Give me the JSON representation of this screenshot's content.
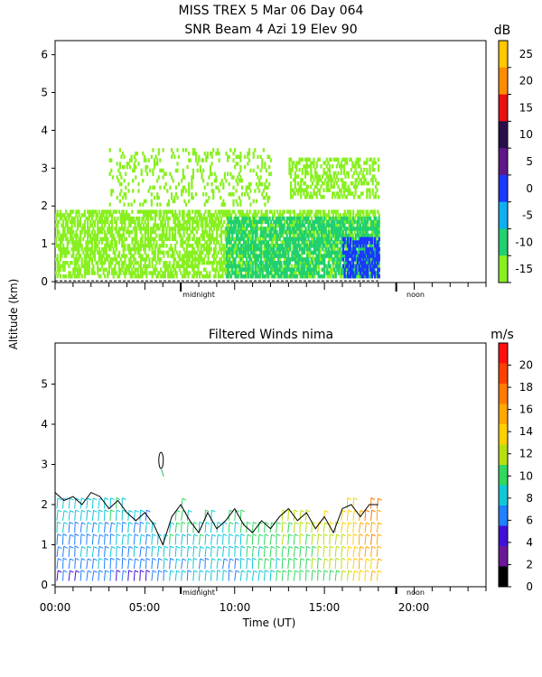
{
  "header": {
    "title_line1": "MISS TREX    5 Mar 06 Day 064",
    "title_line2": "SNR Beam 4 Azi   19 Elev 90"
  },
  "shared": {
    "ylabel": "Altitude (km)",
    "xlabel": "Time (UT)",
    "time_ticks": [
      "00:00",
      "05:00",
      "10:00",
      "15:00",
      "20:00"
    ],
    "day_markers": [
      "midnight",
      "noon"
    ]
  },
  "snr_panel": {
    "unit": "dB",
    "colorbar_ticks": [
      "25",
      "20",
      "15",
      "10",
      "5",
      "0",
      "-5",
      "-10",
      "-15"
    ],
    "colorbar_colors": [
      "#ffc800",
      "#ff8c00",
      "#e81010",
      "#2a0e4a",
      "#5e1888",
      "#1a38ff",
      "#10b0f0",
      "#22d070",
      "#88f020"
    ]
  },
  "wind_panel": {
    "title": "Filtered Winds nima",
    "unit": "m/s",
    "colorbar_ticks": [
      "20",
      "18",
      "16",
      "14",
      "12",
      "10",
      "8",
      "6",
      "4",
      "2",
      "0"
    ],
    "colorbar_colors": [
      "#ff1010",
      "#ff4000",
      "#ff7a00",
      "#ffa800",
      "#ffd000",
      "#b8e010",
      "#30d860",
      "#10c8d8",
      "#2080ff",
      "#4010d8",
      "#6a1898",
      "#000000"
    ]
  },
  "chart_data": [
    {
      "type": "heatmap",
      "title": "SNR Beam 4 Azi   19 Elev 90",
      "ylabel": "Altitude (km)",
      "ylim": [
        0,
        6.4
      ],
      "xlim": [
        0,
        24
      ],
      "yticks": [
        0,
        1,
        2,
        3,
        4,
        5,
        6
      ],
      "colorbar": {
        "label": "dB",
        "range": [
          -15,
          30
        ],
        "ticks": [
          25,
          20,
          15,
          10,
          5,
          0,
          -5,
          -10,
          -15
        ]
      },
      "data_time_range": [
        0,
        18
      ],
      "layers": [
        {
          "name": "dense-boundary-layer",
          "t": [
            0,
            18
          ],
          "alt": [
            0.1,
            1.9
          ],
          "snr_db": -12
        },
        {
          "name": "core",
          "t": [
            9.5,
            18
          ],
          "alt": [
            0.1,
            1.7
          ],
          "snr_db": -8
        },
        {
          "name": "strong-core",
          "t": [
            16,
            18
          ],
          "alt": [
            0.1,
            1.1
          ],
          "snr_db": 2
        },
        {
          "name": "elevated-layer",
          "t": [
            13,
            18
          ],
          "alt": [
            2.2,
            3.2
          ],
          "snr_db": -13
        },
        {
          "name": "sparse-echoes",
          "t": [
            3,
            12
          ],
          "alt": [
            2.0,
            3.5
          ],
          "snr_db": -14
        }
      ]
    },
    {
      "type": "scatter",
      "title": "Filtered Winds nima",
      "xlabel": "Time (UT)",
      "ylabel": "Altitude (km)",
      "xlim": [
        0,
        24
      ],
      "ylim": [
        0,
        6
      ],
      "xticks": [
        "00:00",
        "05:00",
        "10:00",
        "15:00",
        "20:00"
      ],
      "yticks": [
        0,
        1,
        2,
        3,
        4,
        5
      ],
      "colorbar": {
        "label": "m/s",
        "range": [
          0,
          22
        ],
        "ticks": [
          20,
          18,
          16,
          14,
          12,
          10,
          8,
          6,
          4,
          2,
          0
        ]
      },
      "barb_heights_km": [
        0.1,
        0.4,
        0.7,
        1.0,
        1.3,
        1.6,
        1.9
      ],
      "contour_top_km": [
        [
          0.0,
          2.3
        ],
        [
          0.5,
          2.1
        ],
        [
          1.0,
          2.2
        ],
        [
          1.5,
          2.0
        ],
        [
          2.0,
          2.3
        ],
        [
          2.5,
          2.2
        ],
        [
          3.0,
          1.9
        ],
        [
          3.5,
          2.1
        ],
        [
          4.0,
          1.8
        ],
        [
          4.5,
          1.6
        ],
        [
          5.0,
          1.8
        ],
        [
          5.5,
          1.5
        ],
        [
          6.0,
          1.0
        ],
        [
          6.5,
          1.7
        ],
        [
          7.0,
          2.0
        ],
        [
          7.5,
          1.6
        ],
        [
          8.0,
          1.3
        ],
        [
          8.5,
          1.8
        ],
        [
          9.0,
          1.4
        ],
        [
          9.5,
          1.6
        ],
        [
          10.0,
          1.9
        ],
        [
          10.5,
          1.5
        ],
        [
          11.0,
          1.3
        ],
        [
          11.5,
          1.6
        ],
        [
          12.0,
          1.4
        ],
        [
          12.5,
          1.7
        ],
        [
          13.0,
          1.9
        ],
        [
          13.5,
          1.6
        ],
        [
          14.0,
          1.8
        ],
        [
          14.5,
          1.4
        ],
        [
          15.0,
          1.7
        ],
        [
          15.5,
          1.3
        ],
        [
          16.0,
          1.9
        ],
        [
          16.5,
          2.0
        ],
        [
          17.0,
          1.7
        ],
        [
          17.5,
          2.0
        ],
        [
          18.0,
          2.0
        ]
      ],
      "speed_samples_ms": [
        {
          "t": 1,
          "v": 4
        },
        {
          "t": 3,
          "v": 5
        },
        {
          "t": 5,
          "v": 4
        },
        {
          "t": 6,
          "v": 6
        },
        {
          "t": 8,
          "v": 6
        },
        {
          "t": 10,
          "v": 6
        },
        {
          "t": 12,
          "v": 8
        },
        {
          "t": 14,
          "v": 9
        },
        {
          "t": 15,
          "v": 10
        },
        {
          "t": 16,
          "v": 10
        },
        {
          "t": 17,
          "v": 13
        },
        {
          "t": 18,
          "v": 14
        }
      ],
      "isolated_feature": {
        "t": 5.9,
        "alt": [
          2.9,
          3.3
        ]
      }
    }
  ]
}
